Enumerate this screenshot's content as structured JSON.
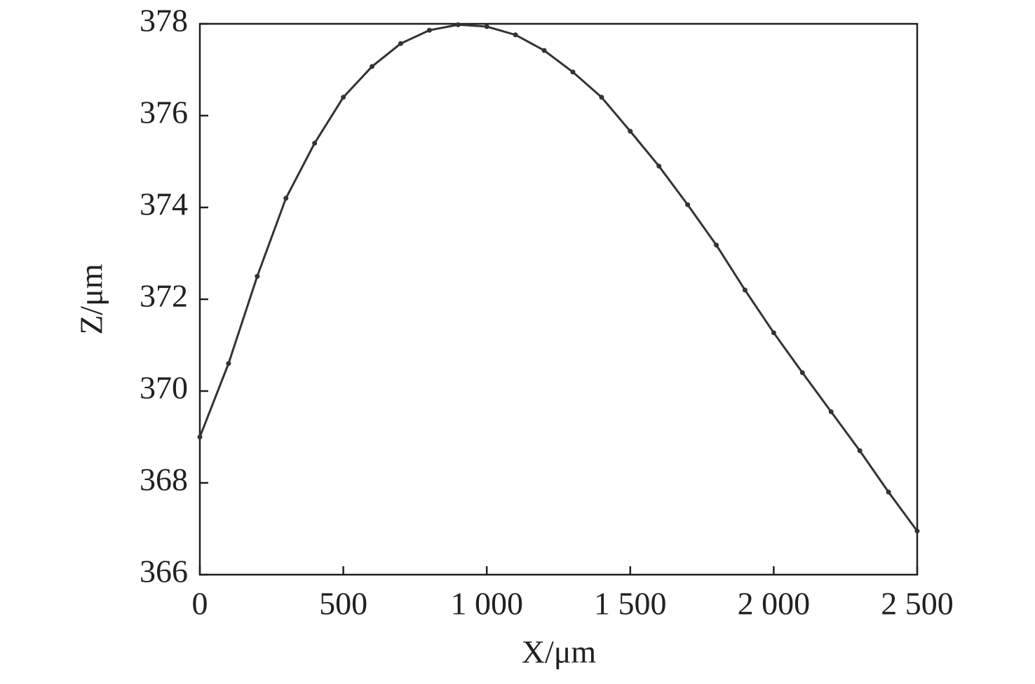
{
  "chart_data": {
    "type": "line",
    "x_label": "X/μm",
    "y_label": "Z/μm",
    "x": [
      0,
      100,
      200,
      300,
      400,
      500,
      600,
      700,
      800,
      900,
      1000,
      1100,
      1200,
      1300,
      1400,
      1500,
      1600,
      1700,
      1800,
      1900,
      2000,
      2100,
      2200,
      2300,
      2400,
      2500
    ],
    "series": [
      {
        "color": "#333333",
        "values": [
          369.0,
          370.6,
          372.5,
          374.2,
          375.4,
          376.4,
          377.07,
          377.57,
          377.86,
          377.98,
          377.94,
          377.76,
          377.42,
          376.95,
          376.4,
          375.66,
          374.9,
          374.06,
          373.18,
          372.2,
          371.27,
          370.4,
          369.55,
          368.7,
          367.8,
          366.95
        ]
      }
    ],
    "xlim": [
      0,
      2500
    ],
    "xticks": [
      0,
      500,
      {
        "value": 1000,
        "label": "1 000"
      },
      {
        "value": 1500,
        "label": "1 500"
      },
      {
        "value": 2000,
        "label": "2 000"
      },
      {
        "value": 2500,
        "label": "2 500"
      }
    ],
    "ylim": [
      366,
      378
    ],
    "yticks": [
      366,
      368,
      370,
      372,
      374,
      376,
      378
    ],
    "grid": false
  }
}
